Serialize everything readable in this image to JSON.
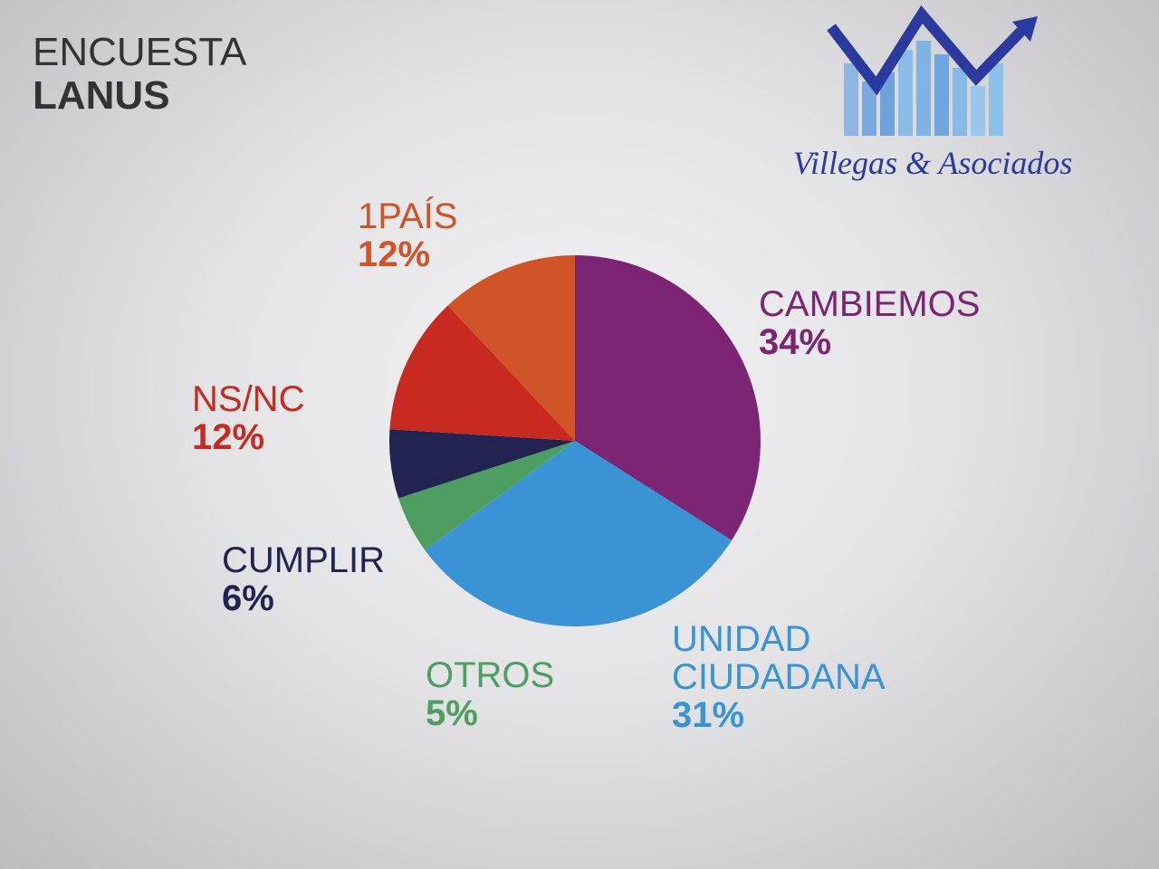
{
  "chart_data": {
    "type": "pie",
    "title": [
      "ENCUESTA",
      "LANUS"
    ],
    "categories": [
      "CAMBIEMOS",
      "UNIDAD CIUDADANA",
      "OTROS",
      "CUMPLIR",
      "NS/NC",
      "1PAÍS"
    ],
    "values": [
      34,
      31,
      5,
      6,
      12,
      12
    ],
    "value_labels": [
      "34%",
      "31%",
      "5%",
      "6%",
      "12%",
      "12%"
    ],
    "colors": [
      "#7b2574",
      "#3a93d4",
      "#4e9e62",
      "#232352",
      "#c82a22",
      "#cf5428"
    ]
  },
  "logo": {
    "text": "Villegas & Asociados"
  }
}
